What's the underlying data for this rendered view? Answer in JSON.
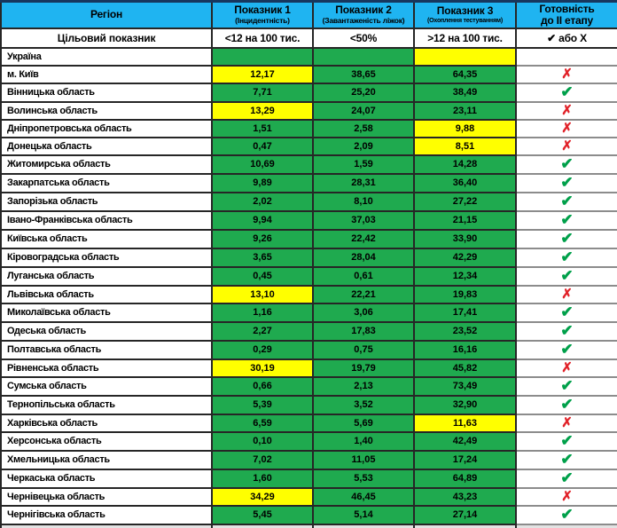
{
  "colors": {
    "header_bg": "#1fb4f1",
    "pass_cell_bg": "#1faa4f",
    "fail_cell_bg": "#ffff00",
    "na_cell_bg": "#bfbfbf",
    "check_color": "#00a04a",
    "x_color": "#e1232a"
  },
  "glyphs": {
    "check": "✔",
    "x": "✗"
  },
  "chart_data": {
    "type": "table",
    "columns": [
      {
        "label": "Регіон",
        "sub": ""
      },
      {
        "label": "Показник 1",
        "sub": "(Інцидентність)"
      },
      {
        "label": "Показник 2",
        "sub": "(Завантаженість ліжок)"
      },
      {
        "label": "Показник 3",
        "sub": "(Охоплення тестуванням)"
      },
      {
        "label": "Готовність",
        "sub": "до II етапу"
      }
    ],
    "target_row": {
      "label": "Цільовий показник",
      "values": [
        "<12 на 100 тис.",
        "<50%",
        ">12 на 100 тис."
      ],
      "status": "✔ або Х"
    },
    "rows": [
      {
        "region": "Україна",
        "v": [
          "",
          "",
          ""
        ],
        "bg": [
          "g",
          "g",
          "y"
        ],
        "status": "none",
        "status_bg": "gray"
      },
      {
        "region": "м. Київ",
        "v": [
          "12,17",
          "38,65",
          "64,35"
        ],
        "bg": [
          "y",
          "g",
          "g"
        ],
        "status": "x",
        "status_bg": "white"
      },
      {
        "region": "Вінницька область",
        "v": [
          "7,71",
          "25,20",
          "38,49"
        ],
        "bg": [
          "g",
          "g",
          "g"
        ],
        "status": "check",
        "status_bg": "white"
      },
      {
        "region": "Волинська область",
        "v": [
          "13,29",
          "24,07",
          "23,11"
        ],
        "bg": [
          "y",
          "g",
          "g"
        ],
        "status": "x",
        "status_bg": "white"
      },
      {
        "region": "Дніпропетровська область",
        "v": [
          "1,51",
          "2,58",
          "9,88"
        ],
        "bg": [
          "g",
          "g",
          "y"
        ],
        "status": "x",
        "status_bg": "white"
      },
      {
        "region": "Донецька область",
        "v": [
          "0,47",
          "2,09",
          "8,51"
        ],
        "bg": [
          "g",
          "g",
          "y"
        ],
        "status": "x",
        "status_bg": "white"
      },
      {
        "region": "Житомирська область",
        "v": [
          "10,69",
          "1,59",
          "14,28"
        ],
        "bg": [
          "g",
          "g",
          "g"
        ],
        "status": "check",
        "status_bg": "white"
      },
      {
        "region": "Закарпатська область",
        "v": [
          "9,89",
          "28,31",
          "36,40"
        ],
        "bg": [
          "g",
          "g",
          "g"
        ],
        "status": "check",
        "status_bg": "white"
      },
      {
        "region": "Запорізька область",
        "v": [
          "2,02",
          "8,10",
          "27,22"
        ],
        "bg": [
          "g",
          "g",
          "g"
        ],
        "status": "check",
        "status_bg": "white"
      },
      {
        "region": "Івано-Франківська область",
        "v": [
          "9,94",
          "37,03",
          "21,15"
        ],
        "bg": [
          "g",
          "g",
          "g"
        ],
        "status": "check",
        "status_bg": "white"
      },
      {
        "region": "Київська область",
        "v": [
          "9,26",
          "22,42",
          "33,90"
        ],
        "bg": [
          "g",
          "g",
          "g"
        ],
        "status": "check",
        "status_bg": "white"
      },
      {
        "region": "Кіровоградська область",
        "v": [
          "3,65",
          "28,04",
          "42,29"
        ],
        "bg": [
          "g",
          "g",
          "g"
        ],
        "status": "check",
        "status_bg": "white"
      },
      {
        "region": "Луганська область",
        "v": [
          "0,45",
          "0,61",
          "12,34"
        ],
        "bg": [
          "g",
          "g",
          "g"
        ],
        "status": "check",
        "status_bg": "white"
      },
      {
        "region": "Львівська область",
        "v": [
          "13,10",
          "22,21",
          "19,83"
        ],
        "bg": [
          "y",
          "g",
          "g"
        ],
        "status": "x",
        "status_bg": "white"
      },
      {
        "region": "Миколаївська область",
        "v": [
          "1,16",
          "3,06",
          "17,41"
        ],
        "bg": [
          "g",
          "g",
          "g"
        ],
        "status": "check",
        "status_bg": "white"
      },
      {
        "region": "Одеська область",
        "v": [
          "2,27",
          "17,83",
          "23,52"
        ],
        "bg": [
          "g",
          "g",
          "g"
        ],
        "status": "check",
        "status_bg": "white"
      },
      {
        "region": "Полтавська область",
        "v": [
          "0,29",
          "0,75",
          "16,16"
        ],
        "bg": [
          "g",
          "g",
          "g"
        ],
        "status": "check",
        "status_bg": "white"
      },
      {
        "region": "Рівненська область",
        "v": [
          "30,19",
          "19,79",
          "45,82"
        ],
        "bg": [
          "y",
          "g",
          "g"
        ],
        "status": "x",
        "status_bg": "white"
      },
      {
        "region": "Сумська область",
        "v": [
          "0,66",
          "2,13",
          "73,49"
        ],
        "bg": [
          "g",
          "g",
          "g"
        ],
        "status": "check",
        "status_bg": "white"
      },
      {
        "region": "Тернопільська область",
        "v": [
          "5,39",
          "3,52",
          "32,90"
        ],
        "bg": [
          "g",
          "g",
          "g"
        ],
        "status": "check",
        "status_bg": "white"
      },
      {
        "region": "Харківська область",
        "v": [
          "6,59",
          "5,69",
          "11,63"
        ],
        "bg": [
          "g",
          "g",
          "y"
        ],
        "status": "x",
        "status_bg": "white"
      },
      {
        "region": "Херсонська область",
        "v": [
          "0,10",
          "1,40",
          "42,49"
        ],
        "bg": [
          "g",
          "g",
          "g"
        ],
        "status": "check",
        "status_bg": "white"
      },
      {
        "region": "Хмельницька область",
        "v": [
          "7,02",
          "11,05",
          "17,24"
        ],
        "bg": [
          "g",
          "g",
          "g"
        ],
        "status": "check",
        "status_bg": "white"
      },
      {
        "region": "Черкаська область",
        "v": [
          "1,60",
          "5,53",
          "64,89"
        ],
        "bg": [
          "g",
          "g",
          "g"
        ],
        "status": "check",
        "status_bg": "white"
      },
      {
        "region": "Чернівецька область",
        "v": [
          "34,29",
          "46,45",
          "43,23"
        ],
        "bg": [
          "y",
          "g",
          "g"
        ],
        "status": "x",
        "status_bg": "white"
      },
      {
        "region": "Чернігівська область",
        "v": [
          "5,45",
          "5,14",
          "27,14"
        ],
        "bg": [
          "g",
          "g",
          "g"
        ],
        "status": "check",
        "status_bg": "white"
      }
    ]
  }
}
